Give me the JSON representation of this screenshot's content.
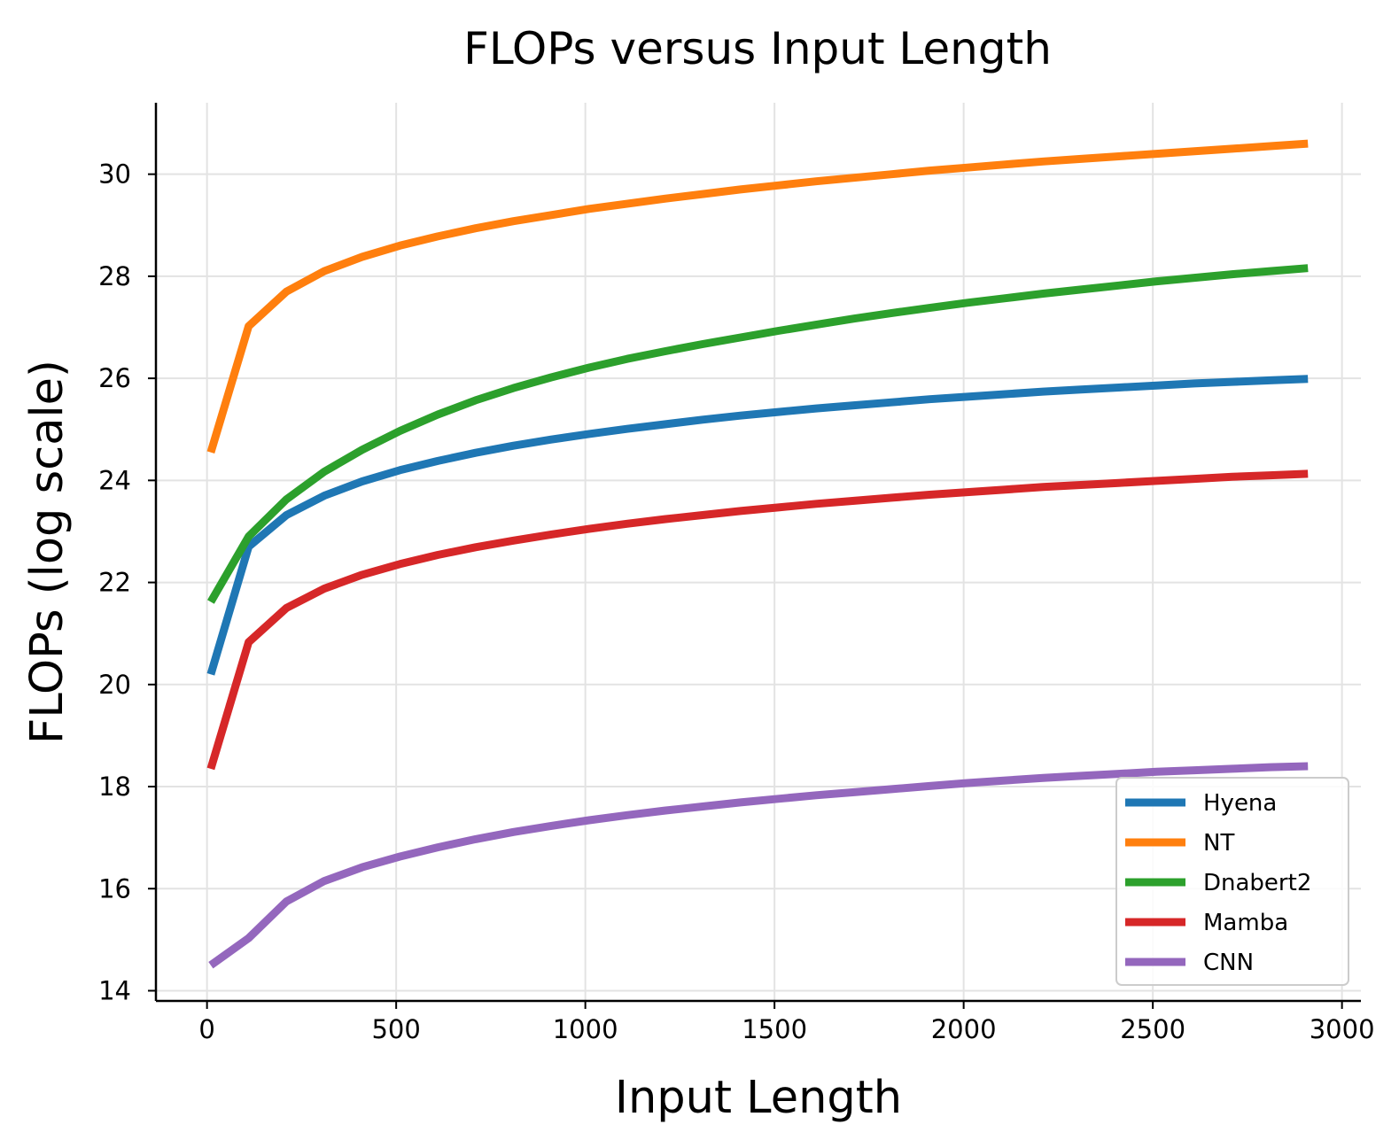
{
  "chart_data": {
    "type": "line",
    "title": "FLOPs versus Input Length",
    "xlabel": "Input Length",
    "ylabel": "FLOPs (log scale)",
    "xlim": [
      -135,
      3050
    ],
    "ylim": [
      13.8,
      31.4
    ],
    "xticks": [
      0,
      500,
      1000,
      1500,
      2000,
      2500,
      3000
    ],
    "yticks": [
      14,
      16,
      18,
      20,
      22,
      24,
      26,
      28,
      30
    ],
    "grid": true,
    "legend_position": "lower-right",
    "x": [
      10,
      110,
      210,
      310,
      410,
      510,
      610,
      710,
      810,
      910,
      1010,
      1110,
      1210,
      1310,
      1410,
      1510,
      1610,
      1710,
      1810,
      1910,
      2010,
      2110,
      2210,
      2310,
      2410,
      2510,
      2610,
      2710,
      2810,
      2910
    ],
    "series": [
      {
        "name": "Hyena",
        "color": "#1f77b4",
        "values": [
          20.2,
          22.7,
          23.32,
          23.7,
          23.98,
          24.2,
          24.38,
          24.54,
          24.68,
          24.8,
          24.91,
          25.01,
          25.1,
          25.19,
          25.27,
          25.34,
          25.41,
          25.47,
          25.53,
          25.59,
          25.64,
          25.69,
          25.74,
          25.78,
          25.82,
          25.86,
          25.9,
          25.93,
          25.96,
          25.99
        ]
      },
      {
        "name": "NT",
        "color": "#ff7f0e",
        "values": [
          24.55,
          27.02,
          27.7,
          28.1,
          28.38,
          28.6,
          28.78,
          28.94,
          29.08,
          29.2,
          29.32,
          29.42,
          29.52,
          29.61,
          29.7,
          29.78,
          29.86,
          29.93,
          30.0,
          30.07,
          30.13,
          30.19,
          30.25,
          30.3,
          30.35,
          30.4,
          30.45,
          30.5,
          30.55,
          30.6
        ]
      },
      {
        "name": "Dnabert2",
        "color": "#2ca02c",
        "values": [
          21.62,
          22.9,
          23.63,
          24.17,
          24.6,
          24.97,
          25.29,
          25.57,
          25.81,
          26.02,
          26.21,
          26.38,
          26.53,
          26.67,
          26.8,
          26.93,
          27.05,
          27.17,
          27.28,
          27.38,
          27.48,
          27.57,
          27.66,
          27.74,
          27.82,
          27.9,
          27.97,
          28.04,
          28.1,
          28.16
        ]
      },
      {
        "name": "Mamba",
        "color": "#d62728",
        "values": [
          18.35,
          20.83,
          21.5,
          21.88,
          22.15,
          22.36,
          22.54,
          22.69,
          22.82,
          22.94,
          23.05,
          23.15,
          23.24,
          23.32,
          23.4,
          23.47,
          23.54,
          23.6,
          23.66,
          23.72,
          23.77,
          23.82,
          23.87,
          23.91,
          23.95,
          23.99,
          24.03,
          24.07,
          24.1,
          24.13
        ]
      },
      {
        "name": "CNN",
        "color": "#9467bd",
        "values": [
          14.5,
          15.03,
          15.75,
          16.15,
          16.42,
          16.63,
          16.81,
          16.97,
          17.11,
          17.23,
          17.34,
          17.44,
          17.53,
          17.61,
          17.69,
          17.76,
          17.83,
          17.89,
          17.95,
          18.01,
          18.07,
          18.12,
          18.17,
          18.21,
          18.25,
          18.29,
          18.32,
          18.35,
          18.38,
          18.4
        ]
      }
    ]
  }
}
